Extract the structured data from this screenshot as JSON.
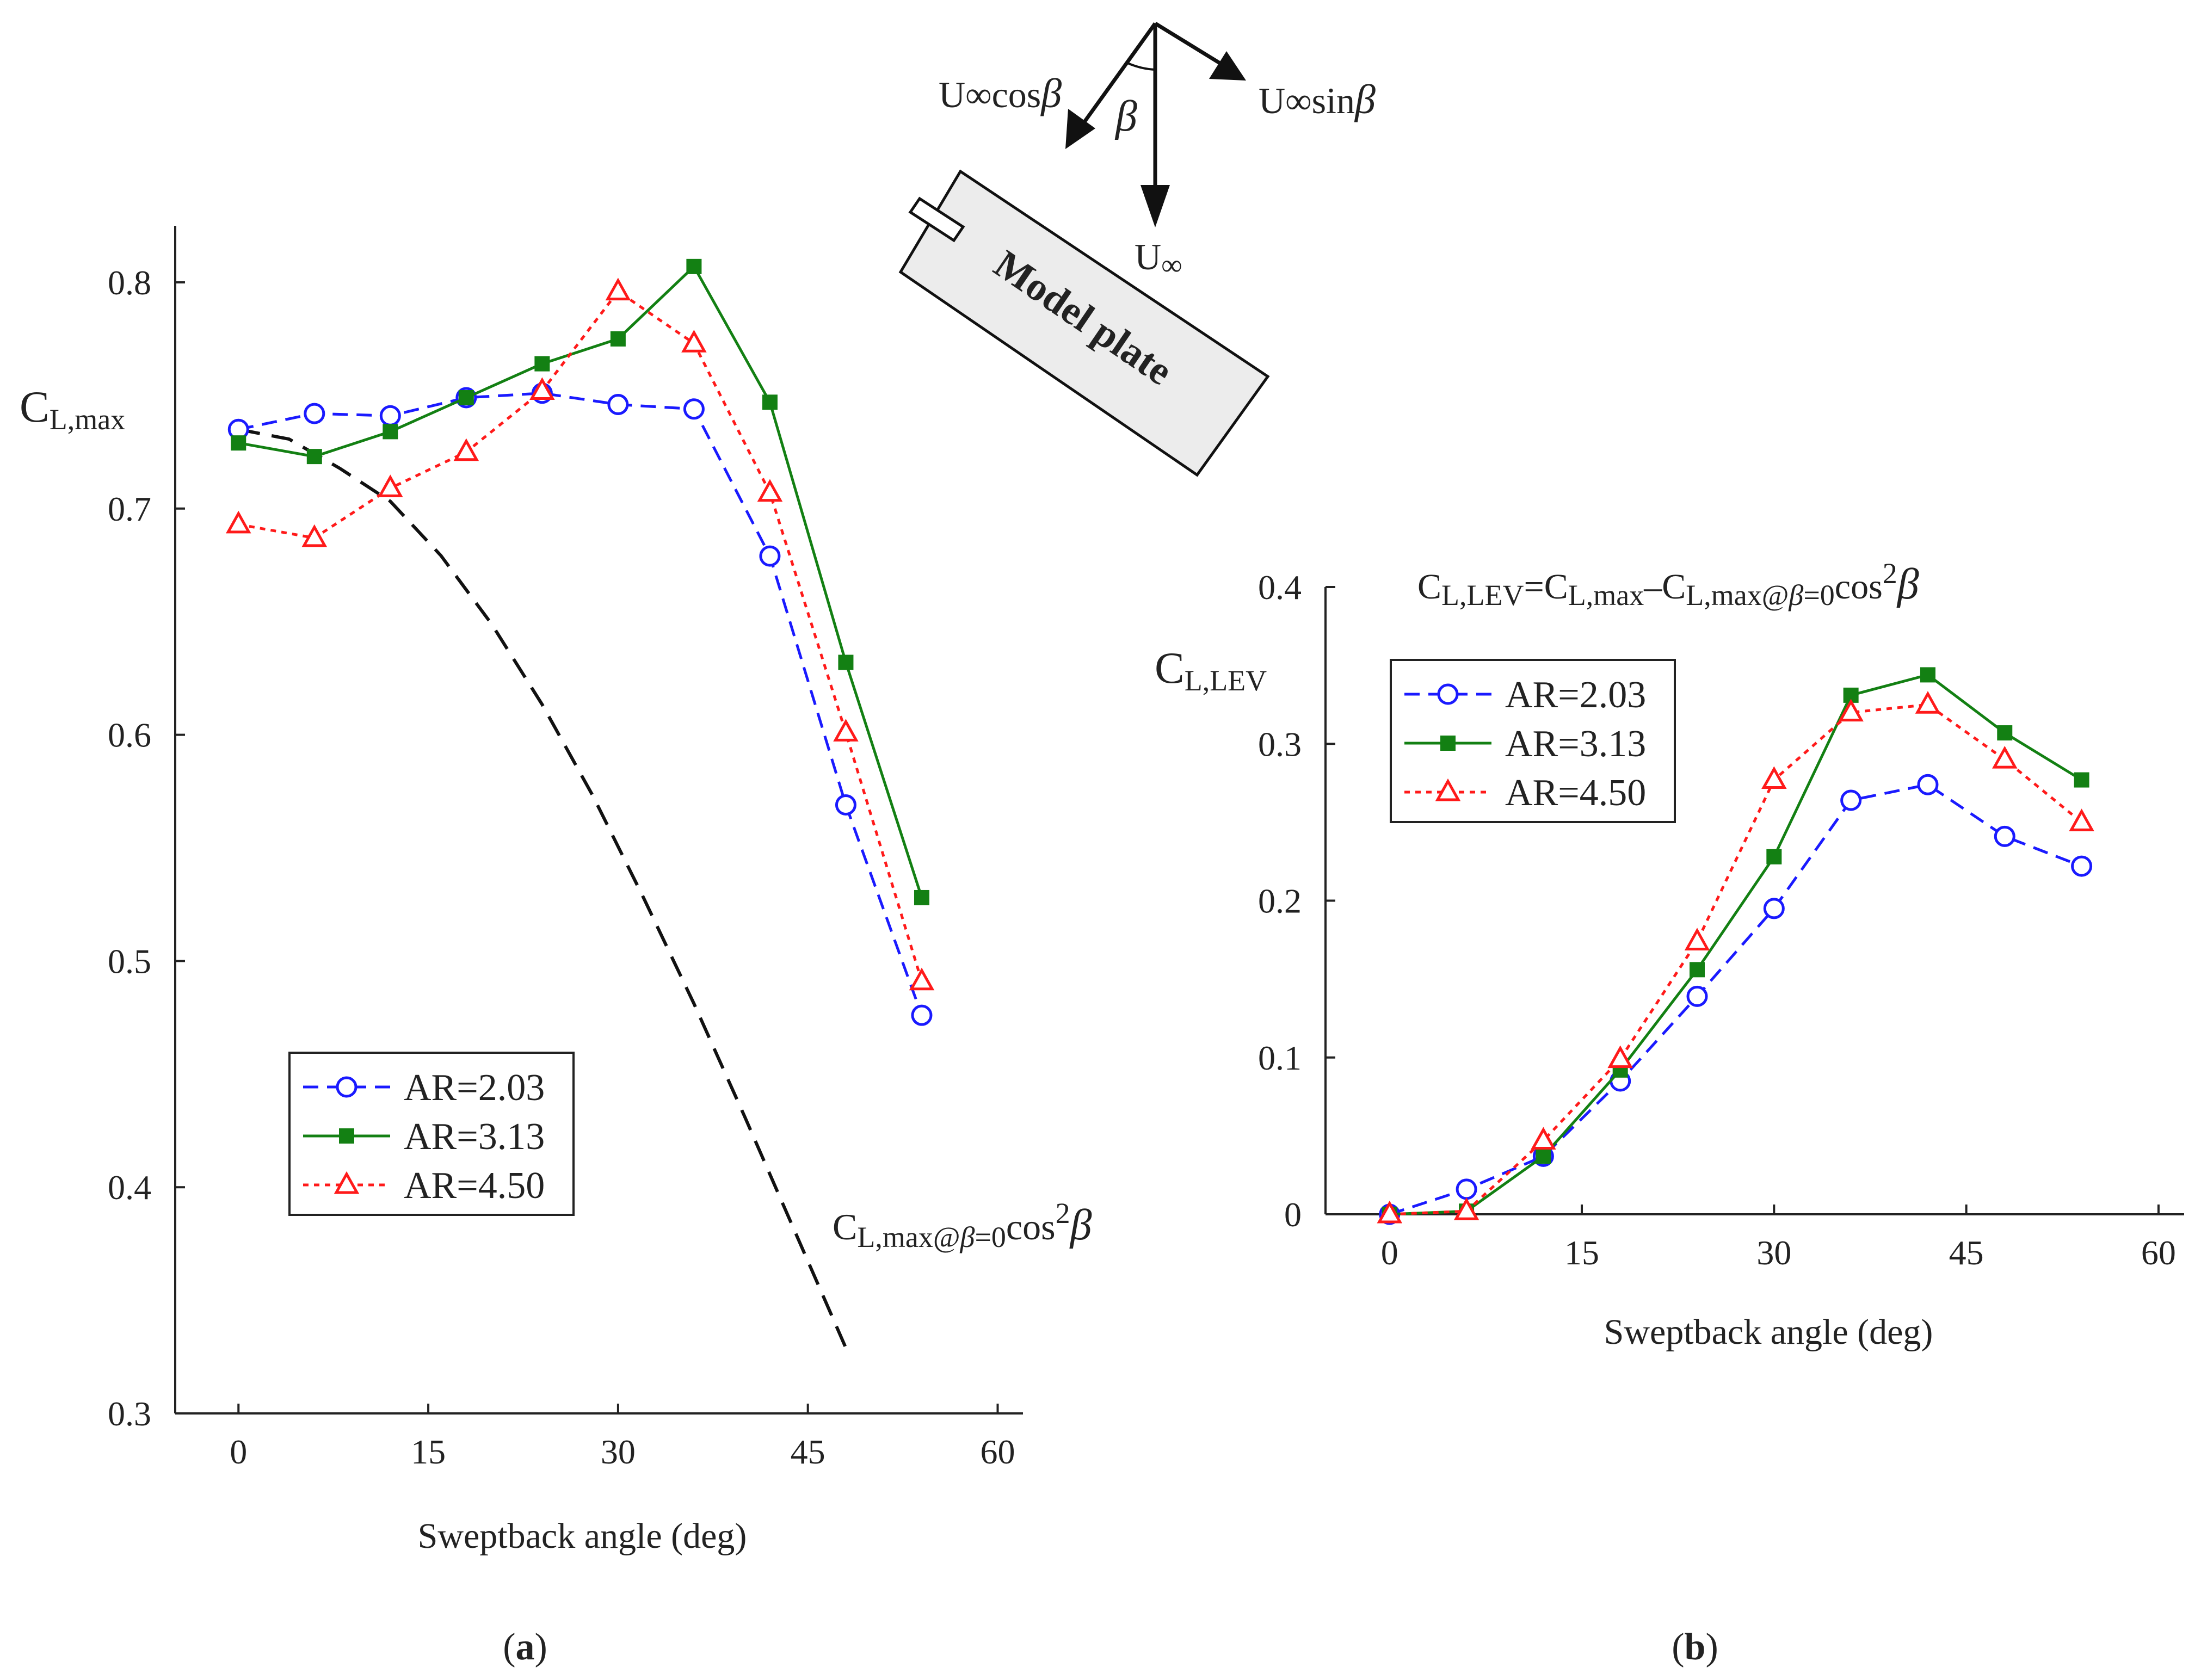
{
  "colors": {
    "blue": "#1a1aff",
    "green": "#138013",
    "red": "#ff1a1a",
    "black": "#111111",
    "plate_fill": "#ececec"
  },
  "panel_a": {
    "label_open": "(",
    "label_letter": "a",
    "label_close": ")",
    "xlabel": "Sweptback angle (deg)",
    "ylabel_main": "C",
    "ylabel_sub": "L,max",
    "curve_label": {
      "main1": "C",
      "sub1": "L,max@",
      "beta": "β",
      "sub2": "=0",
      "main2": "cos",
      "sup": "2",
      "beta2": "β"
    },
    "legend": [
      "AR=2.03",
      "AR=3.13",
      "AR=4.50"
    ]
  },
  "panel_b": {
    "label_open": "(",
    "label_letter": "b",
    "label_close": ")",
    "xlabel": "Sweptback angle (deg)",
    "ylabel_main": "C",
    "ylabel_sub": "L,LEV",
    "formula": {
      "c1": "C",
      "s1": "L,LEV",
      "eq": "=C",
      "s2": "L,max",
      "minus": "–C",
      "s3": "L,max@",
      "beta": "β",
      "s4": "=0",
      "cos": "cos",
      "sup": "2",
      "beta2": "β"
    },
    "legend": [
      "AR=2.03",
      "AR=3.13",
      "AR=4.50"
    ]
  },
  "diagram": {
    "u_cos_main": "U",
    "u_cos_inf": "∞",
    "u_cos_rest": "cos",
    "u_cos_beta": "β",
    "beta_label": "β",
    "u_sin_main": "U",
    "u_sin_inf": "∞",
    "u_sin_rest": "sin",
    "u_sin_beta": "β",
    "u_inf_main": "U",
    "u_inf_sub": "∞",
    "plate_label": "Model plate"
  },
  "chart_data": [
    {
      "type": "line",
      "panel": "a",
      "title": "",
      "xlabel": "Sweptback angle (deg)",
      "ylabel": "C_L,max",
      "xlim": [
        -5,
        62
      ],
      "ylim": [
        0.3,
        0.825
      ],
      "xticks": [
        0,
        15,
        30,
        45,
        60
      ],
      "yticks": [
        0.3,
        0.4,
        0.5,
        0.6,
        0.7,
        0.8
      ],
      "xtick_labels": [
        "0",
        "15",
        "30",
        "45",
        "60"
      ],
      "ytick_labels": [
        "0.3",
        "0.4",
        "0.5",
        "0.6",
        "0.7",
        "0.8"
      ],
      "legend_position": "bottom-center",
      "grid": false,
      "x": [
        0,
        6,
        12,
        18,
        24,
        30,
        36,
        42,
        48,
        54
      ],
      "series": [
        {
          "name": "AR=2.03",
          "marker": "circle",
          "style": "dashed",
          "color": "#1a1aff",
          "values": [
            0.735,
            0.742,
            0.741,
            0.749,
            0.751,
            0.746,
            0.744,
            0.679,
            0.569,
            0.476
          ]
        },
        {
          "name": "AR=3.13",
          "marker": "square",
          "style": "solid",
          "color": "#138013",
          "values": [
            0.729,
            0.723,
            0.734,
            0.749,
            0.764,
            0.775,
            0.807,
            0.747,
            0.632,
            0.528
          ]
        },
        {
          "name": "AR=4.50",
          "marker": "triangle",
          "style": "dotted",
          "color": "#ff1a1a",
          "values": [
            0.693,
            0.687,
            0.709,
            0.725,
            0.752,
            0.796,
            0.773,
            0.707,
            0.601,
            0.491
          ]
        }
      ],
      "reference_curve": {
        "name": "C_L,max@β=0 cos²β",
        "style": "dashed",
        "color": "#111111",
        "x": [
          0,
          4,
          8,
          12,
          16,
          20,
          24,
          28,
          32,
          36,
          40,
          44,
          48
        ],
        "values": [
          0.735,
          0.7307,
          0.7178,
          0.7032,
          0.6792,
          0.649,
          0.6134,
          0.5731,
          0.5281,
          0.4811,
          0.4313,
          0.3801,
          0.329
        ]
      }
    },
    {
      "type": "line",
      "panel": "b",
      "title": "C_L,LEV = C_L,max – C_L,max@β=0 cos²β",
      "xlabel": "Sweptback angle (deg)",
      "ylabel": "C_L,LEV",
      "xlim": [
        -5,
        62
      ],
      "ylim": [
        0,
        0.4
      ],
      "xticks": [
        0,
        15,
        30,
        45,
        60
      ],
      "yticks": [
        0,
        0.1,
        0.2,
        0.3,
        0.4
      ],
      "xtick_labels": [
        "0",
        "15",
        "30",
        "45",
        "60"
      ],
      "ytick_labels": [
        "0",
        "0.1",
        "0.2",
        "0.3",
        "0.4"
      ],
      "legend_position": "top-left",
      "grid": false,
      "x": [
        0,
        6,
        12,
        18,
        24,
        30,
        36,
        42,
        48,
        54
      ],
      "series": [
        {
          "name": "AR=2.03",
          "marker": "circle",
          "style": "dashed",
          "color": "#1a1aff",
          "values": [
            0.0,
            0.016,
            0.037,
            0.085,
            0.139,
            0.195,
            0.264,
            0.274,
            0.241,
            0.222
          ]
        },
        {
          "name": "AR=3.13",
          "marker": "square",
          "style": "solid",
          "color": "#138013",
          "values": [
            0.0,
            0.002,
            0.037,
            0.092,
            0.156,
            0.228,
            0.331,
            0.344,
            0.307,
            0.277
          ]
        },
        {
          "name": "AR=4.50",
          "marker": "triangle",
          "style": "dotted",
          "color": "#ff1a1a",
          "values": [
            0.0,
            0.002,
            0.047,
            0.099,
            0.174,
            0.277,
            0.32,
            0.325,
            0.29,
            0.25
          ]
        }
      ]
    }
  ]
}
